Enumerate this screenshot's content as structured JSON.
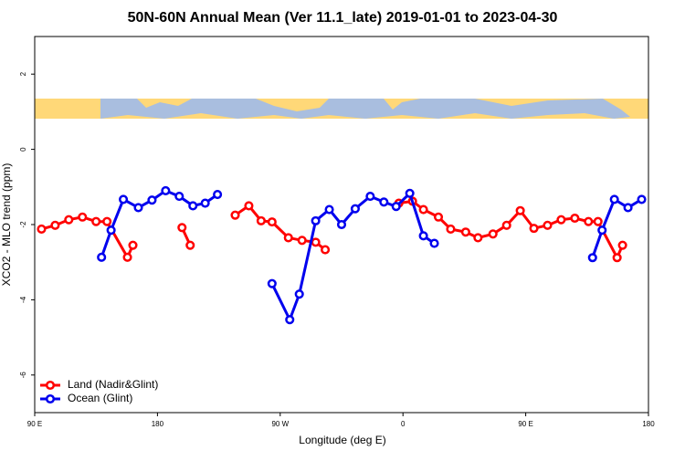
{
  "chart_data": {
    "type": "line",
    "title": "50N-60N Annual Mean (Ver 11.1_late)   2019-01-01 to 2023-04-30",
    "xlabel": "Longitude (deg E)",
    "ylabel": "XCO2 - MLO trend (ppm)",
    "xlim": [
      90,
      540
    ],
    "xticks": [
      {
        "value": 90,
        "label": "90 E"
      },
      {
        "value": 180,
        "label": "180"
      },
      {
        "value": 270,
        "label": "90 W"
      },
      {
        "value": 360,
        "label": "0"
      },
      {
        "value": 450,
        "label": "90 E"
      },
      {
        "value": 540,
        "label": "180"
      }
    ],
    "ylim": [
      -7,
      3
    ],
    "yticks": [
      -6,
      -4,
      -2,
      0,
      2
    ],
    "legend": "bottom-left",
    "series": [
      {
        "name": "Land (Nadir&Glint)",
        "color": "#ff0000",
        "x": [
          95,
          105,
          115,
          125,
          135,
          143,
          158,
          162,
          null,
          198,
          204,
          null,
          237,
          247,
          256,
          264,
          276,
          286,
          296,
          303,
          null,
          357,
          367,
          375,
          386,
          395,
          406,
          415,
          426,
          436,
          446,
          456,
          466,
          476,
          486,
          496,
          503,
          517,
          521
        ],
        "values": [
          -2.12,
          -2.02,
          -1.87,
          -1.8,
          -1.92,
          -1.92,
          -2.87,
          -2.55,
          null,
          -2.08,
          -2.55,
          null,
          -1.75,
          -1.5,
          -1.9,
          -1.93,
          -2.35,
          -2.42,
          -2.47,
          -2.67,
          null,
          -1.43,
          -1.38,
          -1.6,
          -1.8,
          -2.12,
          -2.2,
          -2.35,
          -2.25,
          -2.02,
          -1.63,
          -2.1,
          -2.02,
          -1.87,
          -1.83,
          -1.92,
          -1.92,
          -2.88,
          -2.55
        ]
      },
      {
        "name": "Ocean (Glint)",
        "color": "#0000ee",
        "x": [
          139,
          146,
          155,
          166,
          176,
          186,
          196,
          206,
          215,
          224,
          null,
          264,
          277,
          284,
          296,
          306,
          315,
          325,
          336,
          346,
          355,
          365,
          375,
          383,
          null,
          499,
          506,
          515,
          525,
          535
        ],
        "values": [
          -2.87,
          -2.15,
          -1.33,
          -1.55,
          -1.35,
          -1.1,
          -1.25,
          -1.5,
          -1.43,
          -1.2,
          null,
          -3.57,
          -4.53,
          -3.85,
          -1.9,
          -1.6,
          -2.0,
          -1.58,
          -1.25,
          -1.4,
          -1.52,
          -1.17,
          -2.3,
          -2.5,
          null,
          -2.88,
          -2.15,
          -1.33,
          -1.55,
          -1.33
        ]
      }
    ]
  }
}
